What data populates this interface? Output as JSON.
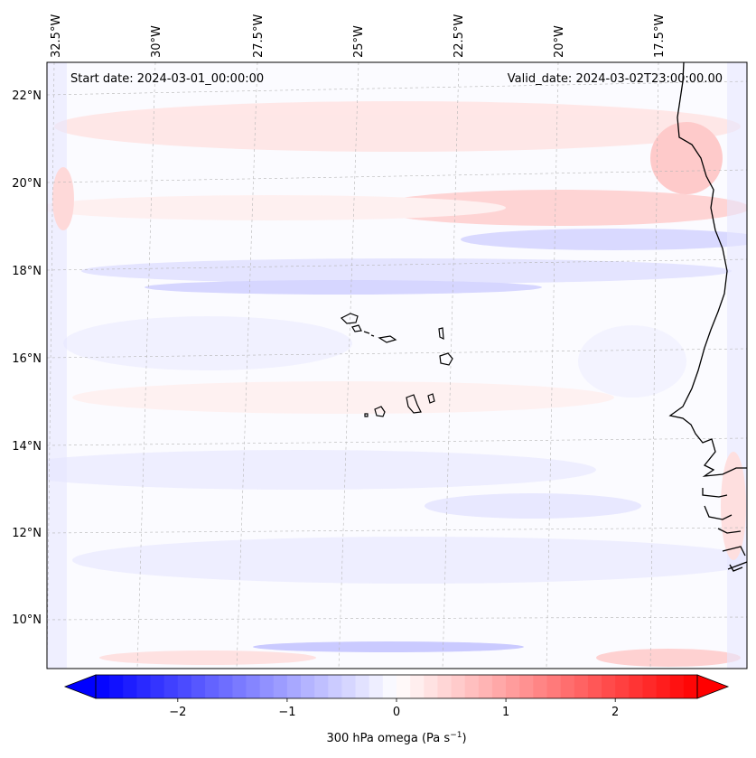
{
  "map": {
    "start_date": "Start date: 2024-03-01_00:00:00",
    "valid_date": "Valid_date: 2024-03-02T23:00:00.00",
    "lon_labels": [
      "32.5°W",
      "30°W",
      "27.5°W",
      "25°W",
      "22.5°W",
      "20°W",
      "17.5°W"
    ],
    "lat_labels": [
      "22°N",
      "20°N",
      "18°N",
      "16°N",
      "14°N",
      "12°N",
      "10°N"
    ],
    "field": "300 hPa omega",
    "units": "Pa s",
    "units_exponent": "−1"
  },
  "colorbar": {
    "ticks": [
      -2,
      -1,
      0,
      1,
      2
    ],
    "tick_labels": [
      "−2",
      "−1",
      "0",
      "1",
      "2"
    ],
    "range": [
      -2.75,
      2.75
    ],
    "negative_color": "#0000ff",
    "positive_color": "#ff0000",
    "center_color": "#ffffff"
  }
}
